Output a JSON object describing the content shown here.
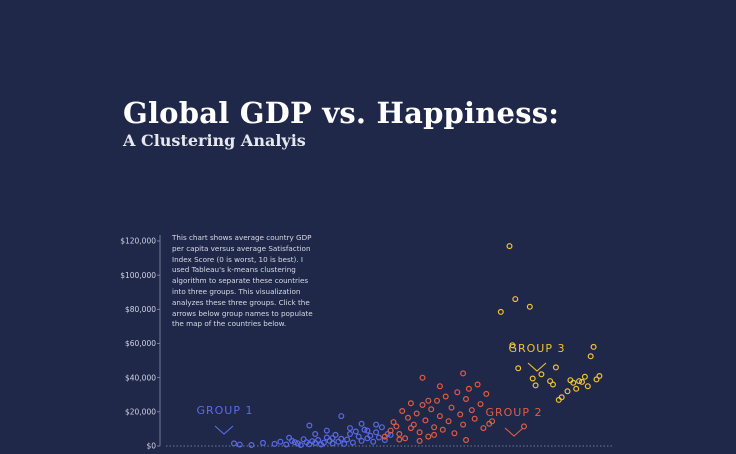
{
  "header": {
    "title": "Global GDP vs. Happiness:",
    "subtitle": "A Clustering Analyis"
  },
  "description": "This chart shows average country GDP per capita versus average Satisfaction Index Score (0 is worst, 10 is best). I used Tableau's k-means clustering algorithm to separate these countries into three groups. This visualization analyzes these three groups. Click the arrows below group names to populate the map of the countries below.",
  "chart_data": {
    "type": "scatter",
    "ylim": [
      0,
      120000
    ],
    "y_ticks": [
      {
        "value": 0,
        "label": "$0"
      },
      {
        "value": 20000,
        "label": "$20,000"
      },
      {
        "value": 40000,
        "label": "$40,000"
      },
      {
        "value": 60000,
        "label": "$60,000"
      },
      {
        "value": 80000,
        "label": "$80,000"
      },
      {
        "value": 100000,
        "label": "$100,000"
      },
      {
        "value": 120000,
        "label": "$120,000"
      }
    ],
    "xlim": [
      0,
      10
    ],
    "grid": false,
    "series": [
      {
        "name": "GROUP 1",
        "color": "#5b6be8",
        "points": [
          [
            3.0,
            1500
          ],
          [
            3.1,
            800
          ],
          [
            3.3,
            600
          ],
          [
            3.5,
            1800
          ],
          [
            3.7,
            1200
          ],
          [
            3.8,
            2500
          ],
          [
            3.9,
            900
          ],
          [
            4.0,
            3000
          ],
          [
            4.1,
            1500
          ],
          [
            4.15,
            600
          ],
          [
            4.2,
            4000
          ],
          [
            4.25,
            2200
          ],
          [
            4.3,
            1000
          ],
          [
            4.35,
            2800
          ],
          [
            4.4,
            1800
          ],
          [
            4.45,
            3500
          ],
          [
            4.5,
            900
          ],
          [
            4.55,
            2000
          ],
          [
            4.6,
            5000
          ],
          [
            4.65,
            3000
          ],
          [
            4.7,
            1500
          ],
          [
            4.75,
            6500
          ],
          [
            4.8,
            2500
          ],
          [
            4.85,
            4200
          ],
          [
            4.9,
            1200
          ],
          [
            4.95,
            3800
          ],
          [
            5.0,
            7000
          ],
          [
            5.05,
            2000
          ],
          [
            5.1,
            8500
          ],
          [
            5.15,
            5500
          ],
          [
            5.2,
            3000
          ],
          [
            5.25,
            9500
          ],
          [
            5.3,
            4500
          ],
          [
            5.35,
            6000
          ],
          [
            5.4,
            2500
          ],
          [
            5.45,
            8000
          ],
          [
            5.5,
            5000
          ],
          [
            5.55,
            11000
          ],
          [
            5.6,
            3500
          ],
          [
            5.65,
            7000
          ],
          [
            4.3,
            12000
          ],
          [
            4.85,
            17500
          ],
          [
            4.6,
            9000
          ],
          [
            5.0,
            10500
          ],
          [
            5.2,
            13000
          ],
          [
            4.4,
            7000
          ],
          [
            3.95,
            4800
          ],
          [
            4.05,
            2200
          ],
          [
            4.7,
            4600
          ],
          [
            5.3,
            9000
          ],
          [
            5.45,
            12500
          ],
          [
            5.7,
            6500
          ]
        ]
      },
      {
        "name": "GROUP 2",
        "color": "#e25c45",
        "points": [
          [
            5.6,
            5500
          ],
          [
            5.7,
            9000
          ],
          [
            5.75,
            14000
          ],
          [
            5.8,
            11500
          ],
          [
            5.85,
            7000
          ],
          [
            5.9,
            20500
          ],
          [
            5.95,
            4500
          ],
          [
            6.0,
            16500
          ],
          [
            6.05,
            25000
          ],
          [
            6.1,
            12500
          ],
          [
            6.15,
            19000
          ],
          [
            6.2,
            8000
          ],
          [
            6.25,
            24000
          ],
          [
            6.3,
            15000
          ],
          [
            6.35,
            5500
          ],
          [
            6.4,
            21500
          ],
          [
            6.45,
            11000
          ],
          [
            6.5,
            26500
          ],
          [
            6.55,
            17500
          ],
          [
            6.6,
            9500
          ],
          [
            6.65,
            29000
          ],
          [
            6.7,
            14500
          ],
          [
            6.75,
            22500
          ],
          [
            6.8,
            7500
          ],
          [
            6.85,
            31500
          ],
          [
            6.9,
            18500
          ],
          [
            6.95,
            12500
          ],
          [
            7.0,
            27500
          ],
          [
            7.05,
            33500
          ],
          [
            7.1,
            21000
          ],
          [
            7.15,
            16000
          ],
          [
            7.2,
            36000
          ],
          [
            7.25,
            24500
          ],
          [
            7.3,
            10500
          ],
          [
            7.35,
            30500
          ],
          [
            6.25,
            40000
          ],
          [
            6.55,
            35000
          ],
          [
            6.95,
            42500
          ],
          [
            7.0,
            3500
          ],
          [
            6.2,
            3000
          ],
          [
            6.45,
            6500
          ],
          [
            5.85,
            3800
          ],
          [
            7.4,
            13000
          ],
          [
            8.0,
            11500
          ],
          [
            7.45,
            14500
          ],
          [
            6.05,
            10500
          ],
          [
            6.35,
            26500
          ]
        ]
      },
      {
        "name": "GROUP 3",
        "color": "#f2c230",
        "points": [
          [
            7.75,
            117000
          ],
          [
            7.6,
            78500
          ],
          [
            7.85,
            86000
          ],
          [
            8.1,
            81500
          ],
          [
            7.8,
            59000
          ],
          [
            7.9,
            45500
          ],
          [
            8.15,
            39500
          ],
          [
            8.2,
            35500
          ],
          [
            8.3,
            42000
          ],
          [
            8.45,
            38000
          ],
          [
            8.5,
            36000
          ],
          [
            8.55,
            46000
          ],
          [
            8.65,
            28500
          ],
          [
            8.75,
            32000
          ],
          [
            8.8,
            38500
          ],
          [
            8.85,
            37000
          ],
          [
            8.9,
            33500
          ],
          [
            9.0,
            37500
          ],
          [
            9.05,
            40500
          ],
          [
            9.15,
            52500
          ],
          [
            9.2,
            58000
          ],
          [
            9.3,
            41000
          ],
          [
            9.1,
            35000
          ],
          [
            8.95,
            38000
          ],
          [
            8.6,
            27000
          ],
          [
            9.25,
            39000
          ]
        ]
      }
    ],
    "annotations": [
      {
        "text": "GROUP 1",
        "color": "#5b6be8"
      },
      {
        "text": "GROUP 2",
        "color": "#e25c45"
      },
      {
        "text": "GROUP 3",
        "color": "#f2c230"
      }
    ]
  }
}
